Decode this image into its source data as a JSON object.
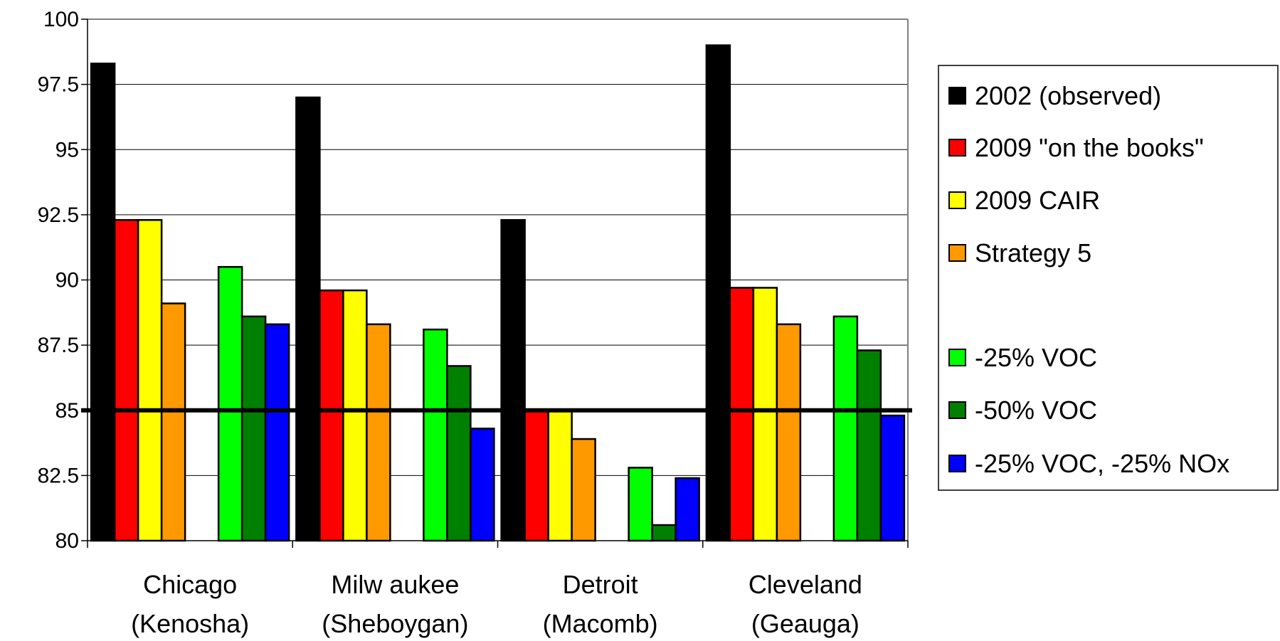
{
  "chart_data": {
    "type": "bar",
    "categories": [
      [
        "Chicago",
        "(Kenosha)"
      ],
      [
        "Milw aukee",
        "(Sheboygan)"
      ],
      [
        "Detroit",
        "(Macomb)"
      ],
      [
        "Cleveland",
        "(Geauga)"
      ]
    ],
    "series": [
      {
        "name": "2002 (observed)",
        "color": "#000000",
        "group": 0,
        "values": [
          98.3,
          97.0,
          92.3,
          99.0
        ]
      },
      {
        "name": "2009 \"on the books\"",
        "color": "#ff0000",
        "group": 0,
        "values": [
          92.3,
          89.6,
          85.0,
          89.7
        ]
      },
      {
        "name": "2009 CAIR",
        "color": "#ffff00",
        "group": 0,
        "values": [
          92.3,
          89.6,
          85.0,
          89.7
        ]
      },
      {
        "name": "Strategy 5",
        "color": "#ff9900",
        "group": 0,
        "values": [
          89.1,
          88.3,
          83.9,
          88.3
        ]
      },
      {
        "name": "-25% VOC",
        "color": "#00ff00",
        "group": 1,
        "values": [
          90.5,
          88.1,
          82.8,
          88.6
        ]
      },
      {
        "name": "-50% VOC",
        "color": "#008000",
        "group": 1,
        "values": [
          88.6,
          86.7,
          80.6,
          87.3
        ]
      },
      {
        "name": "-25% VOC, -25% NOx",
        "color": "#0000ff",
        "group": 1,
        "values": [
          88.3,
          84.3,
          82.4,
          84.8
        ]
      }
    ],
    "yticks": [
      "80",
      "82.5",
      "85",
      "87.5",
      "90",
      "92.5",
      "95",
      "97.5",
      "100"
    ],
    "ylim": [
      80,
      100
    ],
    "reference_line": 85,
    "title": "",
    "xlabel": "",
    "ylabel": "",
    "grid": true,
    "legend_position": "right"
  }
}
